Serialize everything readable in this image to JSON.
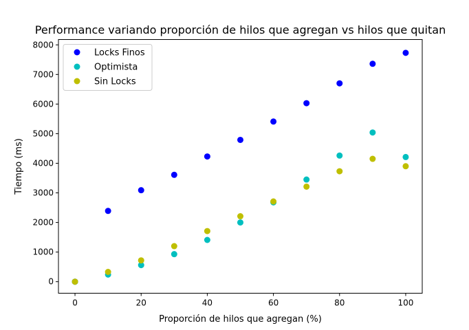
{
  "chart_data": {
    "type": "scatter",
    "title": "Performance variando proporción de hilos que agregan vs hilos que quitan",
    "xlabel": "Proporción de hilos que agregan (%)",
    "ylabel": "Tiempo (ms)",
    "xlim": [
      -5,
      105
    ],
    "ylim": [
      -390,
      8180
    ],
    "x_ticks": [
      0,
      20,
      40,
      60,
      80,
      100
    ],
    "y_ticks": [
      0,
      1000,
      2000,
      3000,
      4000,
      5000,
      6000,
      7000,
      8000
    ],
    "grid": false,
    "legend_position": "upper-left",
    "x": [
      0,
      10,
      20,
      30,
      40,
      50,
      60,
      70,
      80,
      90,
      100
    ],
    "series": [
      {
        "name": "Locks Finos",
        "color": "#0000ff",
        "values": [
          0,
          2390,
          3090,
          3610,
          4230,
          4790,
          5410,
          6030,
          6700,
          7360,
          7730
        ]
      },
      {
        "name": "Optimista",
        "color": "#00bfbf",
        "values": [
          0,
          240,
          560,
          930,
          1410,
          2000,
          2680,
          3450,
          4260,
          5040,
          4210
        ]
      },
      {
        "name": "Sin Locks",
        "color": "#bfbf00",
        "values": [
          0,
          330,
          720,
          1200,
          1710,
          2210,
          2710,
          3210,
          3730,
          4150,
          3900
        ]
      }
    ]
  }
}
